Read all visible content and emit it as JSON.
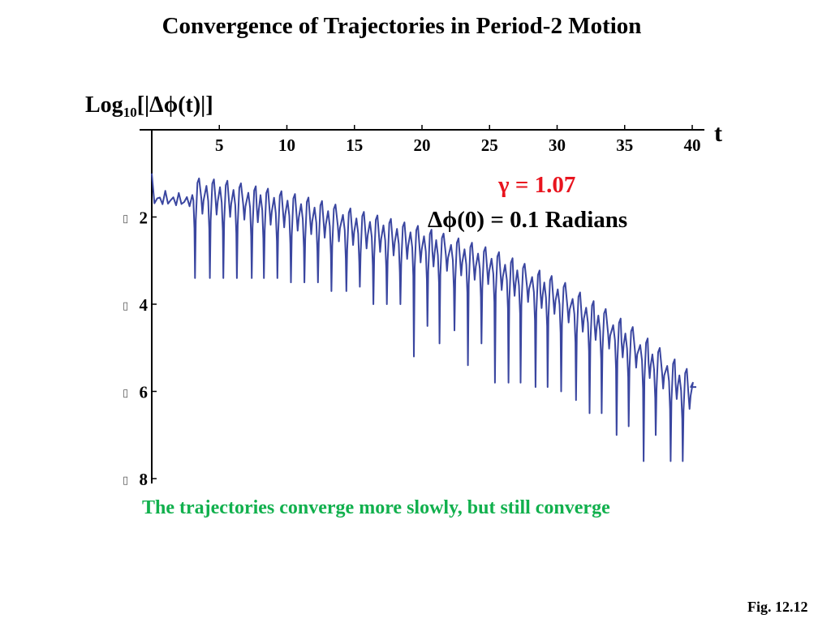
{
  "title": "Convergence of Trajectories in Period-2 Motion",
  "footer": "Fig. 12.12",
  "chart_data": {
    "type": "line",
    "title": "Convergence of Trajectories in Period-2 Motion",
    "ylabel": {
      "main": "Log",
      "sub": "10",
      "rest": "[|Δϕ(t)|]"
    },
    "xlabel": "t",
    "xlim": [
      0,
      40
    ],
    "ylim": [
      0,
      -8
    ],
    "x_ticks": [
      5,
      10,
      15,
      20,
      25,
      30,
      35,
      40
    ],
    "y_ticks": [
      {
        "value": -2,
        "label": "2"
      },
      {
        "value": -4,
        "label": "4"
      },
      {
        "value": -6,
        "label": "6"
      },
      {
        "value": -8,
        "label": "8"
      }
    ],
    "annotations": {
      "gamma": "γ = 1.07",
      "initial_separation": "Δϕ(0) = 0.1 Radians"
    },
    "caption": "The trajectories converge more slowly, but still converge",
    "line_color": "#3a46a0",
    "series": [
      {
        "period": 1.0,
        "dip_times": [
          3.2,
          4.3,
          5.3,
          6.3,
          7.4,
          8.3,
          9.3,
          10.3,
          11.3,
          12.3,
          13.3,
          14.4,
          15.4,
          16.4,
          17.4,
          18.4,
          19.4,
          20.4,
          21.3,
          22.4,
          23.4,
          24.4,
          25.4,
          26.4,
          27.3,
          28.4,
          29.3,
          30.3,
          31.4,
          32.4,
          33.3,
          34.4,
          35.3,
          36.4,
          37.3,
          38.4,
          39.3
        ],
        "dip_values": [
          -3.4,
          -3.4,
          -3.4,
          -3.4,
          -3.4,
          -3.4,
          -3.4,
          -3.5,
          -3.5,
          -3.5,
          -3.7,
          -3.7,
          -3.6,
          -4.0,
          -4.0,
          -4.0,
          -5.2,
          -4.5,
          -4.9,
          -4.6,
          -5.4,
          -4.9,
          -5.8,
          -5.8,
          -5.8,
          -5.9,
          -5.9,
          -6.0,
          -6.2,
          -6.5,
          -6.5,
          -7.0,
          -6.8,
          -7.6,
          -7.0,
          -7.6,
          -7.6
        ],
        "upper_envelope": [
          [
            0,
            -1.0
          ],
          [
            5,
            -1.1
          ],
          [
            10,
            -1.4
          ],
          [
            15,
            -1.8
          ],
          [
            20,
            -2.2
          ],
          [
            25,
            -2.7
          ],
          [
            30,
            -3.4
          ],
          [
            35,
            -4.4
          ],
          [
            40,
            -5.6
          ]
        ]
      }
    ],
    "final_value": -5.9
  }
}
